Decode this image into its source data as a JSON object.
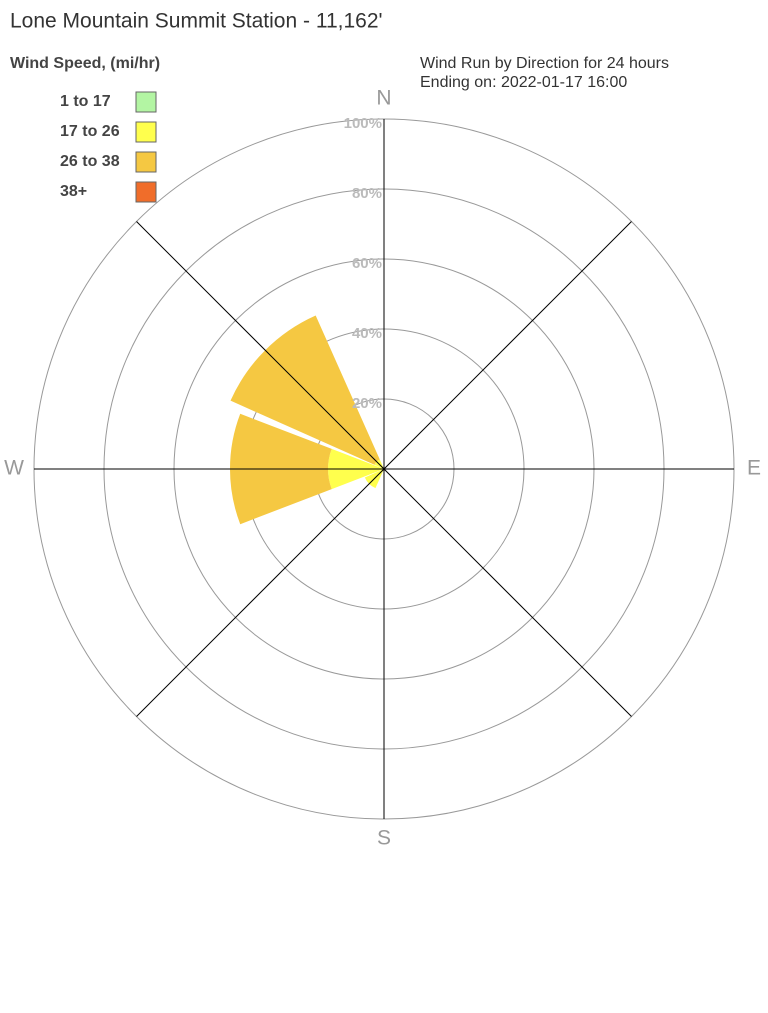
{
  "chart_data": {
    "type": "wind_rose",
    "title": "Lone Mountain Summit Station - 11,162'",
    "legend_title": "Wind Speed, (mi/hr)",
    "subtitle": [
      "Wind Run by Direction for 24 hours",
      "Ending on: 2022-01-17 16:00"
    ],
    "categories": [
      "N",
      null,
      "E",
      null,
      "S",
      null,
      "W",
      null
    ],
    "series": [
      {
        "name": "1 to 17",
        "color": "#b3f5a3",
        "values": [
          0,
          0,
          0,
          0,
          0,
          0,
          0,
          0
        ]
      },
      {
        "name": "17 to 26",
        "color": "#ffff4d",
        "values": [
          0,
          0,
          0,
          0,
          0,
          6,
          16,
          3
        ]
      },
      {
        "name": "26 to 38",
        "color": "#f5c842",
        "values": [
          0,
          0,
          0,
          0,
          0,
          0,
          28,
          45
        ]
      },
      {
        "name": "38+",
        "color": "#f06d2a",
        "values": [
          0,
          0,
          0,
          0,
          0,
          0,
          0,
          0
        ]
      }
    ],
    "rlim": [
      0,
      100
    ],
    "rticks": [
      {
        "value": 20,
        "label": "20%"
      },
      {
        "value": 40,
        "label": "40%"
      },
      {
        "value": 60,
        "label": "60%"
      },
      {
        "value": 80,
        "label": "80%"
      },
      {
        "value": 100,
        "label": "100%"
      }
    ],
    "grid": true
  }
}
